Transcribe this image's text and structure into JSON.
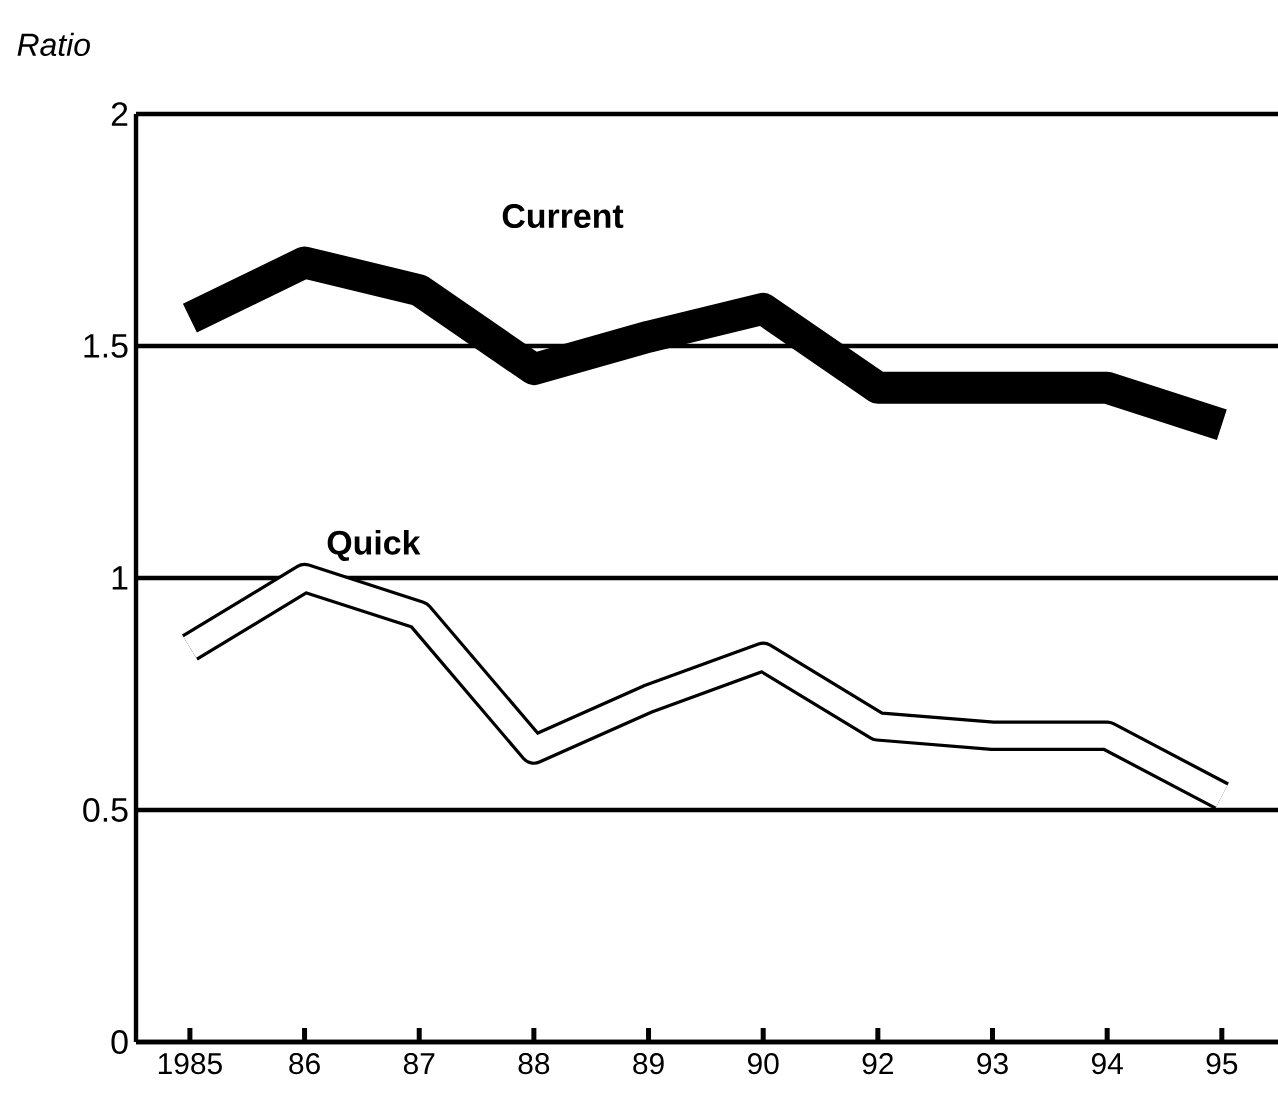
{
  "chart_data": {
    "type": "line",
    "ylabel": "Ratio",
    "categories": [
      "1985",
      "86",
      "87",
      "88",
      "89",
      "90",
      "92",
      "93",
      "94",
      "95"
    ],
    "series": [
      {
        "name": "Current",
        "color": "#000000",
        "values": [
          1.56,
          1.68,
          1.62,
          1.45,
          1.52,
          1.58,
          1.41,
          1.41,
          1.41,
          1.33
        ]
      },
      {
        "name": "Quick",
        "color": "#000000",
        "values": [
          0.85,
          1.0,
          0.92,
          0.63,
          0.74,
          0.83,
          0.68,
          0.66,
          0.66,
          0.53
        ]
      }
    ],
    "ylim": [
      0,
      2
    ],
    "yticks": [
      0,
      0.5,
      1,
      1.5,
      2
    ],
    "grid": "y",
    "marker": "none",
    "line_style": "solid"
  }
}
